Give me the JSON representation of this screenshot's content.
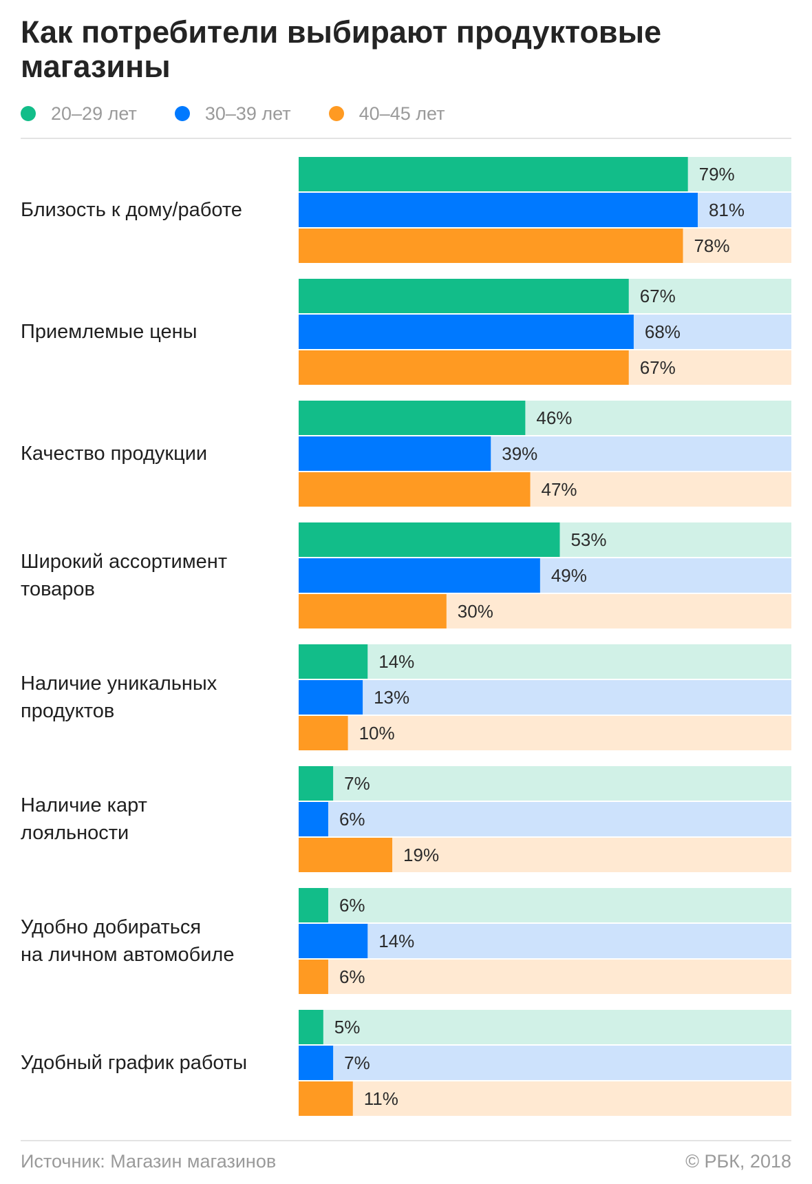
{
  "title": "Как потребители выбирают продуктовые магазины",
  "footer": {
    "source": "Источник: Магазин магазинов",
    "copyright": "© РБК, 2018"
  },
  "colors": {
    "bars": [
      "#12bd89",
      "#0079ff",
      "#ff9a22"
    ],
    "tracks": [
      "#d1f1e7",
      "#cde2fc",
      "#ffe9d2"
    ]
  },
  "chart_data": {
    "type": "bar",
    "orientation": "horizontal",
    "unit": "%",
    "xlim": [
      0,
      100
    ],
    "grid": false,
    "legend_position": "top-left",
    "categories": [
      [
        "Близость к дому/работе"
      ],
      [
        "Приемлемые цены"
      ],
      [
        "Качество продукции"
      ],
      [
        "Широкий ассортимент",
        "товаров"
      ],
      [
        "Наличие уникальных",
        "продуктов"
      ],
      [
        "Наличие карт",
        "лояльности"
      ],
      [
        "Удобно добираться",
        "на личном автомобиле"
      ],
      [
        "Удобный график работы"
      ]
    ],
    "series": [
      {
        "name": "20–29 лет",
        "values": [
          79,
          67,
          46,
          53,
          14,
          7,
          6,
          5
        ]
      },
      {
        "name": "30–39 лет",
        "values": [
          81,
          68,
          39,
          49,
          13,
          6,
          14,
          7
        ]
      },
      {
        "name": "40–45 лет",
        "values": [
          78,
          67,
          47,
          30,
          10,
          19,
          6,
          11
        ]
      }
    ]
  }
}
